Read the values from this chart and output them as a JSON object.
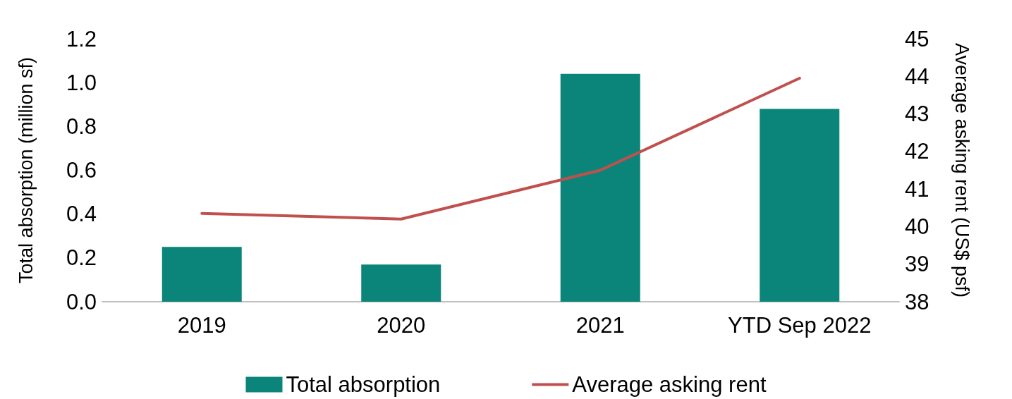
{
  "chart_data": {
    "type": "bar",
    "categories": [
      "2019",
      "2020",
      "2021",
      "YTD Sep 2022"
    ],
    "series": [
      {
        "name": "Total absorption",
        "color": "#0b857a",
        "values": [
          0.25,
          0.17,
          1.04,
          0.88
        ]
      },
      {
        "name": "Average asking rent",
        "type": "line",
        "axis": "y2",
        "color": "#c0504d",
        "values": [
          40.35,
          40.2,
          41.5,
          43.95
        ]
      }
    ],
    "ylabel": "Total absorption (million sf)",
    "y2label": "Average asking rent (US$ psf)",
    "ylim": [
      0,
      1.2
    ],
    "yticks": [
      {
        "value": 0,
        "label": "0.0"
      },
      0.2,
      0.4,
      0.6,
      0.8,
      {
        "value": 1,
        "label": "1.0"
      },
      1.2
    ],
    "y2lim": [
      38,
      45
    ],
    "y2ticks": [
      38,
      39,
      40,
      41,
      42,
      43,
      44,
      45
    ],
    "grid": false,
    "legend": "bottom",
    "marker": "none",
    "line_style": "solid"
  }
}
